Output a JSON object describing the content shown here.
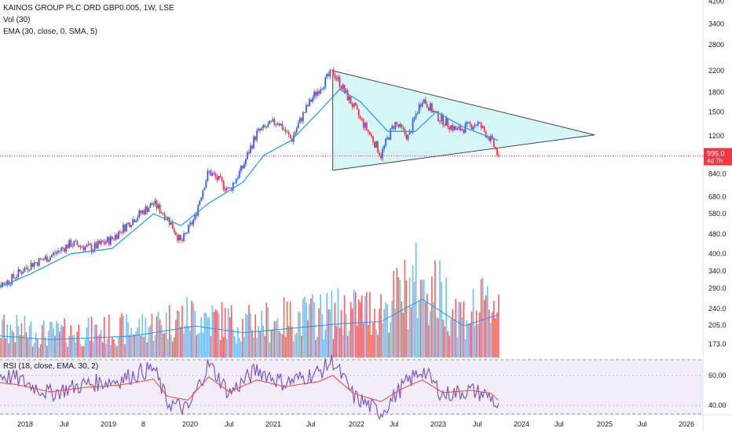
{
  "legend": {
    "title": "KAINOS GROUP PLC ORD GBP0.005, 1W, LSE",
    "vol": "Vol (30)",
    "ema": "EMA (30, close, 0, SMA, 5)",
    "rsi": "RSI (18, close, EMA, 30, 2)"
  },
  "price_tag": {
    "value": "995.0",
    "countdown": "4d 7h",
    "color": "#f23645"
  },
  "colors": {
    "up": "#2962ff",
    "down": "#f23645",
    "ema": "#2196f3",
    "vol_up": "#64b5f6",
    "vol_down": "#ef5350",
    "rsi": "#7e57c2",
    "rsi_ma": "#f44336",
    "triangle_fill": "#b2f0f0",
    "triangle_stroke": "#434651"
  },
  "chart_data": {
    "type": "candlestick",
    "y_scale": "log",
    "price_ticks": [
      "4200",
      "3400",
      "2800",
      "2200",
      "1800",
      "1500",
      "1200",
      "840.0",
      "680.0",
      "580.0",
      "480.0",
      "400.0",
      "340.0",
      "290.0",
      "240.0",
      "205.0",
      "173.0"
    ],
    "rsi_ticks": [
      "60.00",
      "40.00"
    ],
    "time_ticks": [
      "2018",
      "Jul",
      "2019",
      "8",
      "2020",
      "Jul",
      "2021",
      "Jul",
      "2022",
      "Jul",
      "2023",
      "Jul",
      "2024",
      "Jul",
      "2025",
      "Jul",
      "2026"
    ],
    "last_price": 995.0,
    "triangle_points": [
      {
        "date": "2021-11",
        "price": 2200
      },
      {
        "date": "2025-01",
        "price": 1210
      },
      {
        "date": "2021-11",
        "price": 870
      }
    ],
    "price_path": [
      [
        "2017-09",
        290
      ],
      [
        "2017-12",
        310
      ],
      [
        "2018-03",
        360
      ],
      [
        "2018-06",
        390
      ],
      [
        "2018-09",
        440
      ],
      [
        "2018-12",
        420
      ],
      [
        "2019-03",
        460
      ],
      [
        "2019-06",
        550
      ],
      [
        "2019-09",
        640
      ],
      [
        "2019-11",
        560
      ],
      [
        "2020-01",
        440
      ],
      [
        "2020-03",
        560
      ],
      [
        "2020-05",
        860
      ],
      [
        "2020-08",
        720
      ],
      [
        "2020-10",
        900
      ],
      [
        "2020-12",
        1230
      ],
      [
        "2021-03",
        1380
      ],
      [
        "2021-05",
        1150
      ],
      [
        "2021-08",
        1700
      ],
      [
        "2021-11",
        2180
      ],
      [
        "2022-01",
        1750
      ],
      [
        "2022-03",
        1400
      ],
      [
        "2022-06",
        1000
      ],
      [
        "2022-08",
        1350
      ],
      [
        "2022-10",
        1180
      ],
      [
        "2022-12",
        1700
      ],
      [
        "2023-02",
        1450
      ],
      [
        "2023-05",
        1260
      ],
      [
        "2023-08",
        1350
      ],
      [
        "2023-10",
        1150
      ],
      [
        "2023-11",
        995
      ]
    ],
    "ema_path": [
      [
        "2017-09",
        280
      ],
      [
        "2018-03",
        330
      ],
      [
        "2018-09",
        400
      ],
      [
        "2019-03",
        420
      ],
      [
        "2019-09",
        580
      ],
      [
        "2020-01",
        520
      ],
      [
        "2020-05",
        640
      ],
      [
        "2020-10",
        780
      ],
      [
        "2021-01",
        1000
      ],
      [
        "2021-05",
        1150
      ],
      [
        "2021-09",
        1500
      ],
      [
        "2021-12",
        1850
      ],
      [
        "2022-03",
        1650
      ],
      [
        "2022-07",
        1250
      ],
      [
        "2022-11",
        1250
      ],
      [
        "2023-02",
        1500
      ],
      [
        "2023-06",
        1300
      ],
      [
        "2023-11",
        1150
      ]
    ],
    "volume_path": [
      [
        "2017-09",
        100
      ],
      [
        "2018-06",
        80
      ],
      [
        "2019-06",
        95
      ],
      [
        "2020-03",
        140
      ],
      [
        "2020-10",
        110
      ],
      [
        "2021-05",
        130
      ],
      [
        "2021-12",
        150
      ],
      [
        "2022-06",
        160
      ],
      [
        "2022-12",
        260
      ],
      [
        "2023-06",
        140
      ],
      [
        "2023-11",
        190
      ]
    ],
    "rsi_path": [
      [
        "2017-09",
        62
      ],
      [
        "2018-01",
        58
      ],
      [
        "2018-06",
        48
      ],
      [
        "2018-11",
        54
      ],
      [
        "2019-04",
        57
      ],
      [
        "2019-09",
        65
      ],
      [
        "2019-11",
        42
      ],
      [
        "2020-02",
        37
      ],
      [
        "2020-05",
        68
      ],
      [
        "2020-08",
        48
      ],
      [
        "2020-12",
        64
      ],
      [
        "2021-04",
        55
      ],
      [
        "2021-09",
        62
      ],
      [
        "2021-11",
        70
      ],
      [
        "2022-02",
        46
      ],
      [
        "2022-06",
        35
      ],
      [
        "2022-09",
        52
      ],
      [
        "2022-12",
        64
      ],
      [
        "2023-03",
        47
      ],
      [
        "2023-07",
        50
      ],
      [
        "2023-10",
        46
      ],
      [
        "2023-11",
        37
      ]
    ]
  }
}
